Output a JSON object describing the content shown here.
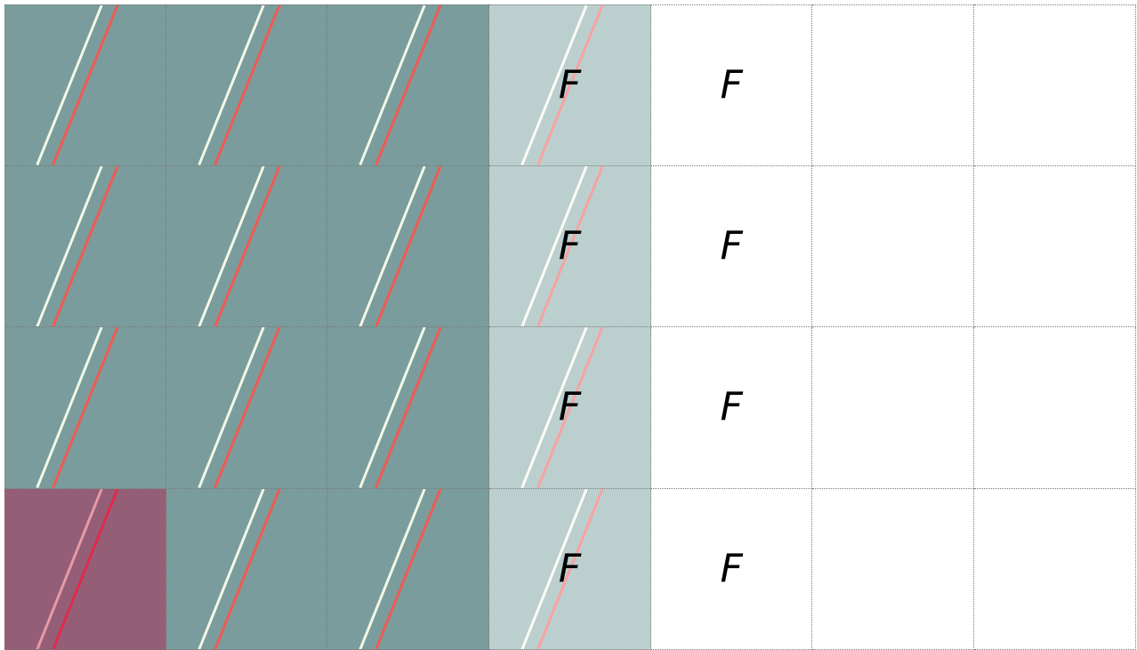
{
  "grid": {
    "columns": 7,
    "rows": 4,
    "cells": [
      {
        "bg": "#7a9c9c",
        "lines": true,
        "lines_faded": false,
        "label": ""
      },
      {
        "bg": "#7a9c9c",
        "lines": true,
        "lines_faded": false,
        "label": ""
      },
      {
        "bg": "#7a9c9c",
        "lines": true,
        "lines_faded": false,
        "label": ""
      },
      {
        "bg": "#bccfcf",
        "lines": true,
        "lines_faded": true,
        "label": "F"
      },
      {
        "bg": "#ffffff",
        "lines": false,
        "lines_faded": false,
        "label": "F"
      },
      {
        "bg": "#ffffff",
        "lines": false,
        "lines_faded": false,
        "label": ""
      },
      {
        "bg": "#ffffff",
        "lines": false,
        "lines_faded": false,
        "label": ""
      },
      {
        "bg": "#7a9c9c",
        "lines": true,
        "lines_faded": false,
        "label": ""
      },
      {
        "bg": "#7a9c9c",
        "lines": true,
        "lines_faded": false,
        "label": ""
      },
      {
        "bg": "#7a9c9c",
        "lines": true,
        "lines_faded": false,
        "label": ""
      },
      {
        "bg": "#bccfcf",
        "lines": true,
        "lines_faded": true,
        "label": "F"
      },
      {
        "bg": "#ffffff",
        "lines": false,
        "lines_faded": false,
        "label": "F"
      },
      {
        "bg": "#ffffff",
        "lines": false,
        "lines_faded": false,
        "label": ""
      },
      {
        "bg": "#ffffff",
        "lines": false,
        "lines_faded": false,
        "label": ""
      },
      {
        "bg": "#7a9c9c",
        "lines": true,
        "lines_faded": false,
        "label": ""
      },
      {
        "bg": "#7a9c9c",
        "lines": true,
        "lines_faded": false,
        "label": ""
      },
      {
        "bg": "#7a9c9c",
        "lines": true,
        "lines_faded": false,
        "label": ""
      },
      {
        "bg": "#bccfcf",
        "lines": true,
        "lines_faded": true,
        "label": "F"
      },
      {
        "bg": "#ffffff",
        "lines": false,
        "lines_faded": false,
        "label": "F"
      },
      {
        "bg": "#ffffff",
        "lines": false,
        "lines_faded": false,
        "label": ""
      },
      {
        "bg": "#ffffff",
        "lines": false,
        "lines_faded": false,
        "label": ""
      },
      {
        "bg": "#955e77",
        "lines": true,
        "lines_faded": false,
        "highlight": true,
        "label": ""
      },
      {
        "bg": "#7a9c9c",
        "lines": true,
        "lines_faded": false,
        "label": ""
      },
      {
        "bg": "#7a9c9c",
        "lines": true,
        "lines_faded": false,
        "label": ""
      },
      {
        "bg": "#bccfcf",
        "lines": true,
        "lines_faded": true,
        "label": "F"
      },
      {
        "bg": "#ffffff",
        "lines": false,
        "lines_faded": false,
        "label": "F"
      },
      {
        "bg": "#ffffff",
        "lines": false,
        "lines_faded": false,
        "label": ""
      },
      {
        "bg": "#ffffff",
        "lines": false,
        "lines_faded": false,
        "label": ""
      }
    ]
  },
  "colors": {
    "line_light": "#f4f9e6",
    "line_red": "#f05a50",
    "line_light_faded": "#fbfdf6",
    "line_red_faded": "#f7a3a0",
    "line_light_highlight": "#e79aa8",
    "line_red_highlight": "#e02a4a"
  }
}
